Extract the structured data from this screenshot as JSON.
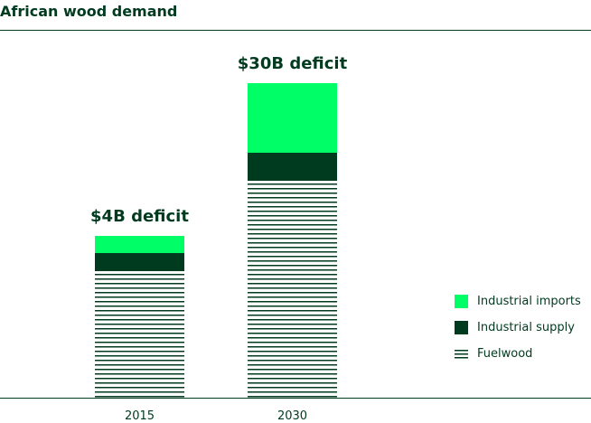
{
  "chart_data": {
    "type": "bar",
    "stacked": true,
    "title": "African wood demand",
    "categories": [
      "2015",
      "2030"
    ],
    "series": [
      {
        "name": "Fuelwood",
        "values": [
          139,
          239
        ],
        "pattern": "horizontal-lines",
        "color": "#003a1f"
      },
      {
        "name": "Industrial supply",
        "values": [
          20,
          31
        ],
        "color": "#003a1f"
      },
      {
        "name": "Industrial imports",
        "values": [
          19,
          77
        ],
        "color": "#00ff66"
      }
    ],
    "annotations": [
      "$4B deficit",
      "$30B deficit"
    ],
    "xlabel": "",
    "ylabel": "",
    "ylim": [
      0,
      350
    ],
    "grid": false,
    "legend": "right"
  },
  "legend": [
    "Industrial imports",
    "Industrial supply",
    "Fuelwood"
  ]
}
